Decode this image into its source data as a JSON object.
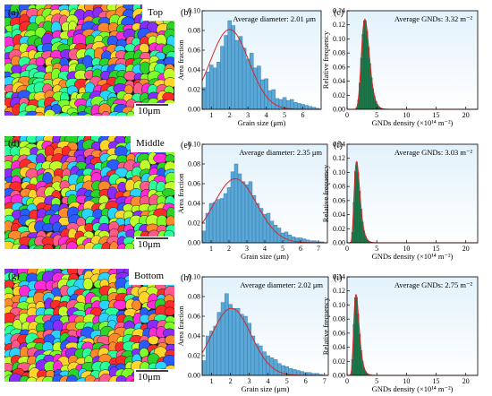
{
  "ebsd_maps": [
    {
      "panel": "(a)",
      "position_label": "Top",
      "scale_bar": "10μm"
    },
    {
      "panel": "(d)",
      "position_label": "Middle",
      "scale_bar": "10μm"
    },
    {
      "panel": "(g)",
      "position_label": "Bottom",
      "scale_bar": "10μm"
    }
  ],
  "colors": {
    "bar_fill": "#5aa8d8",
    "bar_stroke": "#2f6f9a",
    "fit_curve": "#d62728",
    "gnd_fill": "#1b7a4a",
    "panel_bg_top": "#e6f4fc",
    "panel_bg_bottom": "#ffffff",
    "grain_palette": [
      "#ff2b2b",
      "#2bd42b",
      "#2b5bff",
      "#ffd52b",
      "#ff2bd4",
      "#2bd4ff",
      "#ff8a2b",
      "#8a2bff",
      "#7dff2b",
      "#2bff9a",
      "#ff5a8a",
      "#c0ff2b"
    ]
  },
  "chart_data": [
    {
      "type": "bar",
      "panel": "(b)",
      "annotation": "Average diameter: 2.01 μm",
      "xlabel": "Grain size (μm)",
      "ylabel": "Area fraction",
      "xlim": [
        0.5,
        7
      ],
      "ylim": [
        0,
        0.1
      ],
      "xticks": [
        1,
        2,
        3,
        4,
        5,
        6
      ],
      "yticks": [
        0.0,
        0.02,
        0.04,
        0.06,
        0.08,
        0.1
      ],
      "bin_width": 0.2,
      "x": [
        0.6,
        0.8,
        1.0,
        1.2,
        1.4,
        1.6,
        1.8,
        2.0,
        2.2,
        2.4,
        2.6,
        2.8,
        3.0,
        3.2,
        3.4,
        3.6,
        3.8,
        4.0,
        4.2,
        4.4,
        4.6,
        4.8,
        5.0,
        5.2,
        5.4,
        5.6,
        5.8,
        6.0,
        6.2,
        6.4,
        6.6,
        6.8
      ],
      "values": [
        0.022,
        0.038,
        0.045,
        0.042,
        0.048,
        0.064,
        0.075,
        0.09,
        0.085,
        0.07,
        0.074,
        0.062,
        0.051,
        0.057,
        0.042,
        0.044,
        0.03,
        0.031,
        0.019,
        0.02,
        0.011,
        0.01,
        0.012,
        0.009,
        0.01,
        0.007,
        0.006,
        0.005,
        0.004,
        0.003,
        0.002,
        0.001
      ],
      "fit": {
        "type": "gaussian",
        "peak": 0.081,
        "center": 2.0,
        "sigma": 1.05
      }
    },
    {
      "type": "bar",
      "panel": "(c)",
      "annotation": "Average GNDs: 3.32 m⁻²",
      "xlabel": "GNDs density (×10¹⁴ m⁻²)",
      "ylabel": "Relative frequency",
      "xlim": [
        0,
        22
      ],
      "ylim": [
        0,
        0.14
      ],
      "xticks": [
        0,
        5,
        10,
        15,
        20
      ],
      "yticks": [
        0.0,
        0.02,
        0.04,
        0.06,
        0.08,
        0.1,
        0.12,
        0.14
      ],
      "bin_width": 0.25,
      "dist": {
        "type": "lognormal",
        "peak_x": 3.0,
        "peak": 0.128,
        "sigma": 0.22
      }
    },
    {
      "type": "bar",
      "panel": "(e)",
      "annotation": "Average diameter: 2.35 μm",
      "xlabel": "Grain size (μm)",
      "ylabel": "Area fraction",
      "xlim": [
        0.5,
        7.5
      ],
      "ylim": [
        0,
        0.1
      ],
      "xticks": [
        1,
        2,
        3,
        4,
        5,
        6,
        7
      ],
      "yticks": [
        0.0,
        0.02,
        0.04,
        0.06,
        0.08,
        0.1
      ],
      "bin_width": 0.2,
      "x": [
        0.6,
        0.8,
        1.0,
        1.2,
        1.4,
        1.6,
        1.8,
        2.0,
        2.2,
        2.4,
        2.6,
        2.8,
        3.0,
        3.2,
        3.4,
        3.6,
        3.8,
        4.0,
        4.2,
        4.4,
        4.6,
        4.8,
        5.0,
        5.2,
        5.4,
        5.6,
        5.8,
        6.0,
        6.2,
        6.4,
        6.6,
        6.8,
        7.0,
        7.2
      ],
      "values": [
        0.012,
        0.03,
        0.04,
        0.041,
        0.044,
        0.045,
        0.05,
        0.056,
        0.072,
        0.08,
        0.07,
        0.062,
        0.059,
        0.062,
        0.048,
        0.04,
        0.035,
        0.029,
        0.03,
        0.022,
        0.018,
        0.015,
        0.01,
        0.011,
        0.008,
        0.006,
        0.005,
        0.005,
        0.004,
        0.003,
        0.002,
        0.002,
        0.001,
        0.001
      ],
      "fit": {
        "type": "gaussian",
        "peak": 0.065,
        "center": 2.35,
        "sigma": 1.2
      }
    },
    {
      "type": "bar",
      "panel": "(f)",
      "annotation": "Average GNDs: 3.03 m⁻²",
      "xlabel": "GNDs density (×10¹⁴ m⁻²)",
      "ylabel": "Relative frequency",
      "xlim": [
        0,
        22
      ],
      "ylim": [
        0,
        0.14
      ],
      "xticks": [
        0,
        5,
        10,
        15,
        20
      ],
      "yticks": [
        0.0,
        0.02,
        0.04,
        0.06,
        0.08,
        0.1,
        0.12,
        0.14
      ],
      "bin_width": 0.25,
      "dist": {
        "type": "lognormal",
        "peak_x": 1.6,
        "peak": 0.115,
        "sigma": 0.3
      }
    },
    {
      "type": "bar",
      "panel": "(h)",
      "annotation": "Average diameter: 2.02 μm",
      "xlabel": "Grain size (μm)",
      "ylabel": "Area fraction",
      "xlim": [
        0.5,
        7.2
      ],
      "ylim": [
        0,
        0.1
      ],
      "xticks": [
        1,
        2,
        3,
        4,
        5,
        6,
        7
      ],
      "yticks": [
        0.0,
        0.02,
        0.04,
        0.06,
        0.08,
        0.1
      ],
      "bin_width": 0.2,
      "x": [
        0.6,
        0.8,
        1.0,
        1.2,
        1.4,
        1.6,
        1.8,
        2.0,
        2.2,
        2.4,
        2.6,
        2.8,
        3.0,
        3.2,
        3.4,
        3.6,
        3.8,
        4.0,
        4.2,
        4.4,
        4.6,
        4.8,
        5.0,
        5.2,
        5.4,
        5.6,
        5.8,
        6.0,
        6.2,
        6.4,
        6.6,
        6.8
      ],
      "values": [
        0.015,
        0.04,
        0.045,
        0.05,
        0.064,
        0.074,
        0.083,
        0.072,
        0.068,
        0.068,
        0.062,
        0.06,
        0.053,
        0.04,
        0.032,
        0.03,
        0.024,
        0.02,
        0.018,
        0.016,
        0.012,
        0.01,
        0.009,
        0.007,
        0.006,
        0.005,
        0.004,
        0.003,
        0.003,
        0.002,
        0.002,
        0.001
      ],
      "fit": {
        "type": "gaussian",
        "peak": 0.068,
        "center": 2.05,
        "sigma": 1.05
      }
    },
    {
      "type": "bar",
      "panel": "(i)",
      "annotation": "Average GNDs: 2.75 m⁻²",
      "xlabel": "GNDs density (×10¹⁴ m⁻²)",
      "ylabel": "Relative frequency",
      "xlim": [
        0,
        22
      ],
      "ylim": [
        0,
        0.14
      ],
      "xticks": [
        0,
        5,
        10,
        15,
        20
      ],
      "yticks": [
        0.0,
        0.02,
        0.04,
        0.06,
        0.08,
        0.1,
        0.12,
        0.14
      ],
      "bin_width": 0.25,
      "dist": {
        "type": "lognormal",
        "peak_x": 1.5,
        "peak": 0.115,
        "sigma": 0.3
      }
    }
  ]
}
